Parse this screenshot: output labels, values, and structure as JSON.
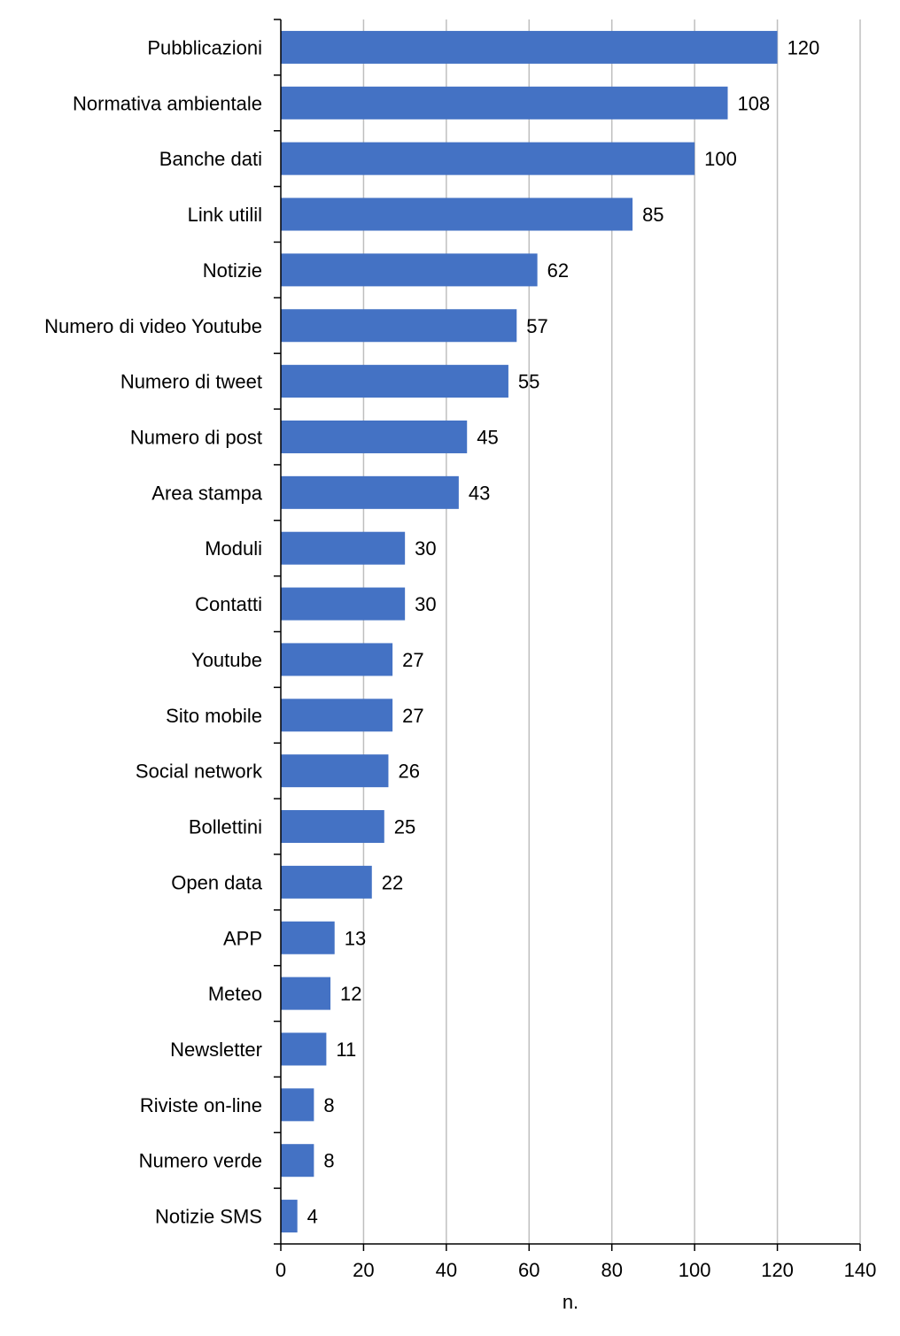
{
  "chart_data": {
    "type": "bar",
    "orientation": "horizontal",
    "categories": [
      "Pubblicazioni",
      "Normativa ambientale",
      "Banche dati",
      "Link utilil",
      "Notizie ",
      "Numero di video Youtube",
      "Numero di tweet",
      "Numero di post",
      "Area stampa",
      "Moduli",
      "Contatti",
      "Youtube",
      "Sito mobile",
      "Social network",
      "Bollettini",
      "Open data",
      "APP",
      "Meteo",
      "Newsletter",
      "Riviste on-line",
      "Numero verde",
      "Notizie SMS"
    ],
    "values": [
      120,
      108,
      100,
      85,
      62,
      57,
      55,
      45,
      43,
      30,
      30,
      27,
      27,
      26,
      25,
      22,
      13,
      12,
      11,
      8,
      8,
      4
    ],
    "data_labels": [
      "120",
      "108",
      "100",
      "85",
      "62",
      "57",
      "55",
      "45",
      "43",
      "30",
      "30",
      "27",
      "27",
      "26",
      "25",
      "22",
      "13",
      "12",
      "11",
      "8",
      "8",
      "4"
    ],
    "xlabel": "n.",
    "ylabel": "",
    "xlim": [
      0,
      140
    ],
    "xticks": [
      0,
      20,
      40,
      60,
      80,
      100,
      120,
      140
    ],
    "xtick_labels": [
      "0",
      "20",
      "40",
      "60",
      "80",
      "100",
      "120",
      "140"
    ],
    "grid": "vertical",
    "bar_color": "#4472c4"
  }
}
